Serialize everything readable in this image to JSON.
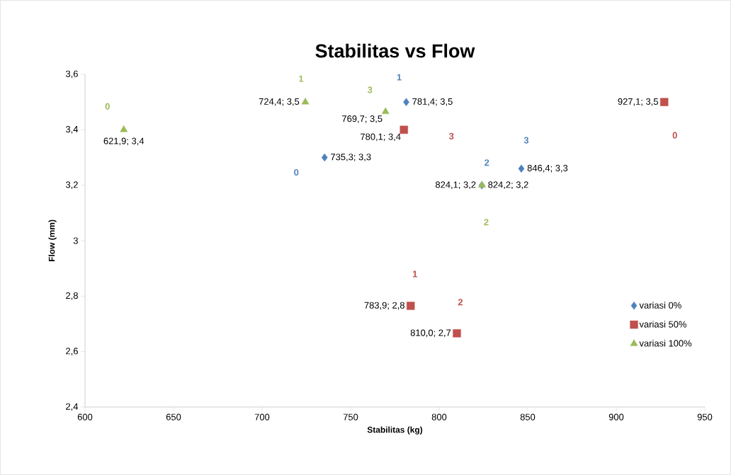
{
  "chart_data": {
    "type": "scatter",
    "title": "Stabilitas vs Flow",
    "xlabel": "Stabilitas (kg)",
    "ylabel": "Flow (mm)",
    "xlim": [
      600,
      950
    ],
    "xticks": [
      600,
      650,
      700,
      750,
      800,
      850,
      900,
      950
    ],
    "ylim": [
      2.4,
      3.6
    ],
    "yticks": [
      {
        "value": 2.4,
        "label": "2,4"
      },
      {
        "value": 2.6,
        "label": "2,6"
      },
      {
        "value": 2.8,
        "label": "2,8"
      },
      3,
      {
        "value": 3.2,
        "label": "3,2"
      },
      {
        "value": 3.4,
        "label": "3,4"
      },
      {
        "value": 3.6,
        "label": "3,6"
      }
    ],
    "grid": false,
    "legend": "bottom right",
    "series": [
      {
        "name": "variasi 0%",
        "color": "#4f81bd",
        "marker": "diamond",
        "x": [
          735.3,
          781.4,
          824.1,
          846.4
        ],
        "values": [
          3.3,
          3.5,
          3.2,
          3.26
        ],
        "value_labels": [
          "735,3; 3,3",
          "781,4; 3,5",
          "824,1; 3,2",
          "846,4; 3,3"
        ]
      },
      {
        "name": "variasi 50%",
        "color": "#c0504d",
        "marker": "square",
        "x": [
          927.1,
          783.9,
          810.0,
          780.1
        ],
        "values": [
          3.5,
          2.765,
          2.666,
          3.4
        ],
        "value_labels": [
          "927,1; 3,5",
          "783,9; 2,8",
          "810,0; 2,7",
          "780,1; 3,4"
        ]
      },
      {
        "name": "variasi 100%",
        "color": "#9bbb59",
        "marker": "triangle",
        "x": [
          621.9,
          724.4,
          824.2,
          769.7
        ],
        "values": [
          3.4,
          3.5,
          3.2,
          3.465
        ],
        "value_labels": [
          "621,9; 3,4",
          "724,4; 3,5",
          "824,2; 3,2",
          "769,7; 3,5"
        ]
      }
    ],
    "annotations": [
      "0",
      "1",
      "2",
      "3",
      "0",
      "1",
      "2",
      "3",
      "0",
      "1",
      "2",
      "3"
    ]
  }
}
